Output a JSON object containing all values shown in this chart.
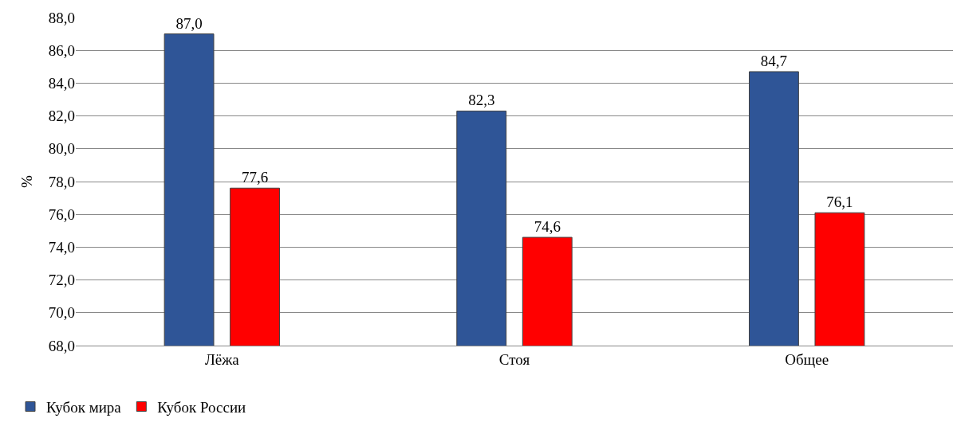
{
  "chart_data": {
    "type": "bar",
    "ylabel": "%",
    "categories": [
      "Лёжа",
      "Стоя",
      "Общее"
    ],
    "series": [
      {
        "name": "Кубок мира",
        "color": "#2f5597",
        "values": [
          87.0,
          82.3,
          84.7
        ],
        "value_labels": [
          "87,0",
          "82,3",
          "84,7"
        ]
      },
      {
        "name": "Кубок России",
        "color": "#ff0000",
        "values": [
          77.6,
          74.6,
          76.1
        ],
        "value_labels": [
          "77,6",
          "74,6",
          "76,1"
        ]
      }
    ],
    "ylim": [
      68,
      88
    ],
    "yticks": [
      {
        "value": 68,
        "label": "68,0"
      },
      {
        "value": 70,
        "label": "70,0"
      },
      {
        "value": 72,
        "label": "72,0"
      },
      {
        "value": 74,
        "label": "74,0"
      },
      {
        "value": 76,
        "label": "76,0"
      },
      {
        "value": 78,
        "label": "78,0"
      },
      {
        "value": 80,
        "label": "80,0"
      },
      {
        "value": 82,
        "label": "82,0"
      },
      {
        "value": 84,
        "label": "84,0"
      },
      {
        "value": 86,
        "label": "86,0"
      },
      {
        "value": 88,
        "label": "88,0"
      }
    ],
    "grid": "y",
    "legend": "bottom left"
  }
}
